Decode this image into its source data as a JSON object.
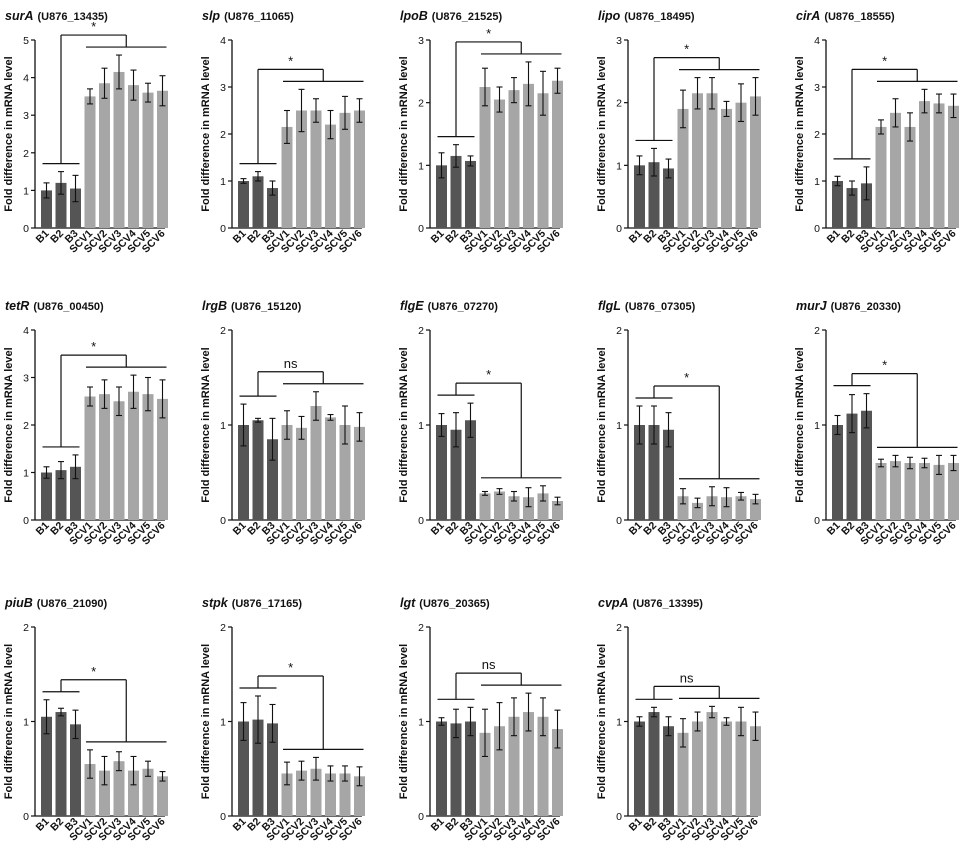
{
  "colors": {
    "baseline": "#555555",
    "scv": "#a6a6a6",
    "axis": "#111111"
  },
  "chart_data": [
    {
      "type": "bar",
      "gene": "surA",
      "locus": "(U876_13435)",
      "ylabel": "Fold difference in mRNA level",
      "ylim": [
        0,
        5
      ],
      "yticks": [
        "0",
        "1",
        "2",
        "3",
        "4",
        "5"
      ],
      "categories": [
        "B1",
        "B2",
        "B3",
        "SCV1",
        "SCV2",
        "SCV3",
        "SCV4",
        "SCV5",
        "SCV6"
      ],
      "values": [
        1.0,
        1.2,
        1.05,
        3.5,
        3.85,
        4.15,
        3.8,
        3.6,
        3.65
      ],
      "errors": [
        0.2,
        0.3,
        0.35,
        0.2,
        0.4,
        0.45,
        0.4,
        0.25,
        0.4
      ],
      "significance": "*"
    },
    {
      "type": "bar",
      "gene": "slp",
      "locus": "(U876_11065)",
      "ylabel": "Fold difference in mRNA level",
      "ylim": [
        0,
        4
      ],
      "yticks": [
        "0",
        "1",
        "2",
        "3",
        "4"
      ],
      "categories": [
        "B1",
        "B2",
        "B3",
        "SCV1",
        "SCV2",
        "SCV3",
        "SCV4",
        "SCV5",
        "SCV6"
      ],
      "values": [
        1.0,
        1.1,
        0.85,
        2.15,
        2.5,
        2.5,
        2.2,
        2.45,
        2.5
      ],
      "errors": [
        0.05,
        0.1,
        0.15,
        0.35,
        0.45,
        0.25,
        0.3,
        0.35,
        0.25
      ],
      "significance": "*"
    },
    {
      "type": "bar",
      "gene": "lpoB",
      "locus": "(U876_21525)",
      "ylabel": "Fold difference in mRNA level",
      "ylim": [
        0,
        3
      ],
      "yticks": [
        "0",
        "1",
        "2",
        "3"
      ],
      "categories": [
        "B1",
        "B2",
        "B3",
        "SCV1",
        "SCV2",
        "SCV3",
        "SCV4",
        "SCV5",
        "SCV6"
      ],
      "values": [
        1.0,
        1.15,
        1.07,
        2.25,
        2.05,
        2.2,
        2.3,
        2.15,
        2.35
      ],
      "errors": [
        0.2,
        0.18,
        0.08,
        0.3,
        0.2,
        0.2,
        0.35,
        0.35,
        0.2
      ],
      "significance": "*"
    },
    {
      "type": "bar",
      "gene": "lipo",
      "locus": "(U876_18495)",
      "ylabel": "Fold difference in mRNA level",
      "ylim": [
        0,
        3
      ],
      "yticks": [
        "0",
        "1",
        "2",
        "3"
      ],
      "categories": [
        "B1",
        "B2",
        "B3",
        "SCV1",
        "SCV2",
        "SCV3",
        "SCV4",
        "SCV5",
        "SCV6"
      ],
      "values": [
        1.0,
        1.05,
        0.95,
        1.9,
        2.15,
        2.15,
        1.9,
        2.0,
        2.1
      ],
      "errors": [
        0.15,
        0.22,
        0.15,
        0.3,
        0.25,
        0.25,
        0.12,
        0.3,
        0.3
      ],
      "significance": "*"
    },
    {
      "type": "bar",
      "gene": "cirA",
      "locus": "(U876_18555)",
      "ylabel": "Fold difference in mRNA level",
      "ylim": [
        0,
        4
      ],
      "yticks": [
        "0",
        "1",
        "2",
        "3",
        "4"
      ],
      "categories": [
        "B1",
        "B2",
        "B3",
        "SCV1",
        "SCV2",
        "SCV3",
        "SCV4",
        "SCV5",
        "SCV6"
      ],
      "values": [
        1.0,
        0.85,
        0.95,
        2.15,
        2.45,
        2.15,
        2.7,
        2.65,
        2.6
      ],
      "errors": [
        0.1,
        0.15,
        0.35,
        0.15,
        0.3,
        0.3,
        0.25,
        0.2,
        0.25
      ],
      "significance": "*"
    },
    {
      "type": "bar",
      "gene": "tetR",
      "locus": "(U876_00450)",
      "ylabel": "Fold difference in mRNA level",
      "ylim": [
        0,
        4
      ],
      "yticks": [
        "0",
        "1",
        "2",
        "3",
        "4"
      ],
      "categories": [
        "B1",
        "B2",
        "B3",
        "SCV1",
        "SCV2",
        "SCV3",
        "SCV4",
        "SCV5",
        "SCV6"
      ],
      "values": [
        1.0,
        1.05,
        1.12,
        2.6,
        2.65,
        2.5,
        2.7,
        2.65,
        2.55
      ],
      "errors": [
        0.12,
        0.18,
        0.25,
        0.2,
        0.3,
        0.3,
        0.35,
        0.35,
        0.4
      ],
      "significance": "*"
    },
    {
      "type": "bar",
      "gene": "lrgB",
      "locus": "(U876_15120)",
      "ylabel": "Fold difference in mRNA level",
      "ylim": [
        0,
        2
      ],
      "yticks": [
        "0",
        "1",
        "2"
      ],
      "categories": [
        "B1",
        "B2",
        "B3",
        "SCV1",
        "SCV2",
        "SCV3",
        "SCV4",
        "SCV5",
        "SCV6"
      ],
      "values": [
        1.0,
        1.05,
        0.85,
        1.0,
        0.97,
        1.2,
        1.08,
        1.0,
        0.98
      ],
      "errors": [
        0.22,
        0.02,
        0.22,
        0.15,
        0.12,
        0.15,
        0.03,
        0.2,
        0.15
      ],
      "significance": "ns"
    },
    {
      "type": "bar",
      "gene": "flgE",
      "locus": "(U876_07270)",
      "ylabel": "Fold difference in mRNA level",
      "ylim": [
        0,
        2
      ],
      "yticks": [
        "0",
        "1",
        "2"
      ],
      "categories": [
        "B1",
        "B2",
        "B3",
        "SCV1",
        "SCV2",
        "SCV3",
        "SCV4",
        "SCV5",
        "SCV6"
      ],
      "values": [
        1.0,
        0.95,
        1.05,
        0.28,
        0.3,
        0.25,
        0.24,
        0.28,
        0.2
      ],
      "errors": [
        0.12,
        0.18,
        0.18,
        0.02,
        0.03,
        0.05,
        0.1,
        0.08,
        0.04
      ],
      "significance": "*"
    },
    {
      "type": "bar",
      "gene": "flgL",
      "locus": "(U876_07305)",
      "ylabel": "Fold difference in mRNA level",
      "ylim": [
        0,
        2
      ],
      "yticks": [
        "0",
        "1",
        "2"
      ],
      "categories": [
        "B1",
        "B2",
        "B3",
        "SCV1",
        "SCV2",
        "SCV3",
        "SCV4",
        "SCV5",
        "SCV6"
      ],
      "values": [
        1.0,
        1.0,
        0.95,
        0.25,
        0.18,
        0.25,
        0.24,
        0.25,
        0.22
      ],
      "errors": [
        0.2,
        0.2,
        0.18,
        0.08,
        0.05,
        0.1,
        0.1,
        0.04,
        0.05
      ],
      "significance": "*"
    },
    {
      "type": "bar",
      "gene": "murJ",
      "locus": "(U876_20330)",
      "ylabel": "Fold difference in mRNA level",
      "ylim": [
        0,
        2
      ],
      "yticks": [
        "0",
        "1",
        "2"
      ],
      "categories": [
        "B1",
        "B2",
        "B3",
        "SCV1",
        "SCV2",
        "SCV3",
        "SCV4",
        "SCV5",
        "SCV6"
      ],
      "values": [
        1.0,
        1.12,
        1.15,
        0.6,
        0.62,
        0.6,
        0.6,
        0.58,
        0.6
      ],
      "errors": [
        0.1,
        0.2,
        0.18,
        0.04,
        0.06,
        0.06,
        0.05,
        0.1,
        0.08
      ],
      "significance": "*"
    },
    {
      "type": "bar",
      "gene": "piuB",
      "locus": "(U876_21090)",
      "ylabel": "Fold difference in mRNA level",
      "ylim": [
        0,
        2
      ],
      "yticks": [
        "0",
        "1",
        "2"
      ],
      "categories": [
        "B1",
        "B2",
        "B3",
        "SCV1",
        "SCV2",
        "SCV3",
        "SCV4",
        "SCV5",
        "SCV6"
      ],
      "values": [
        1.05,
        1.1,
        0.97,
        0.55,
        0.48,
        0.58,
        0.48,
        0.5,
        0.42
      ],
      "errors": [
        0.18,
        0.04,
        0.15,
        0.15,
        0.15,
        0.1,
        0.15,
        0.08,
        0.05
      ],
      "significance": "*"
    },
    {
      "type": "bar",
      "gene": "stpk",
      "locus": "(U876_17165)",
      "ylabel": "Fold difference in mRNA level",
      "ylim": [
        0,
        2
      ],
      "yticks": [
        "0",
        "1",
        "2"
      ],
      "categories": [
        "B1",
        "B2",
        "B3",
        "SCV1",
        "SCV2",
        "SCV3",
        "SCV4",
        "SCV5",
        "SCV6"
      ],
      "values": [
        1.0,
        1.02,
        0.98,
        0.45,
        0.48,
        0.5,
        0.45,
        0.45,
        0.42
      ],
      "errors": [
        0.2,
        0.25,
        0.2,
        0.12,
        0.1,
        0.12,
        0.08,
        0.08,
        0.1
      ],
      "significance": "*"
    },
    {
      "type": "bar",
      "gene": "lgt",
      "locus": "(U876_20365)",
      "ylabel": "Fold difference in mRNA level",
      "ylim": [
        0,
        2
      ],
      "yticks": [
        "0",
        "1",
        "2"
      ],
      "categories": [
        "B1",
        "B2",
        "B3",
        "SCV1",
        "SCV2",
        "SCV3",
        "SCV4",
        "SCV5",
        "SCV6"
      ],
      "values": [
        1.0,
        0.98,
        1.0,
        0.88,
        0.95,
        1.05,
        1.1,
        1.05,
        0.92
      ],
      "errors": [
        0.04,
        0.15,
        0.15,
        0.25,
        0.25,
        0.2,
        0.2,
        0.2,
        0.2
      ],
      "significance": "ns"
    },
    {
      "type": "bar",
      "gene": "cvpA",
      "locus": "(U876_13395)",
      "ylabel": "Fold difference in mRNA level",
      "ylim": [
        0,
        2
      ],
      "yticks": [
        "0",
        "1",
        "2"
      ],
      "categories": [
        "B1",
        "B2",
        "B3",
        "SCV1",
        "SCV2",
        "SCV3",
        "SCV4",
        "SCV5",
        "SCV6"
      ],
      "values": [
        1.0,
        1.1,
        0.95,
        0.88,
        1.0,
        1.1,
        1.0,
        1.0,
        0.95
      ],
      "errors": [
        0.05,
        0.05,
        0.1,
        0.15,
        0.1,
        0.06,
        0.04,
        0.15,
        0.15
      ],
      "significance": "ns"
    }
  ]
}
